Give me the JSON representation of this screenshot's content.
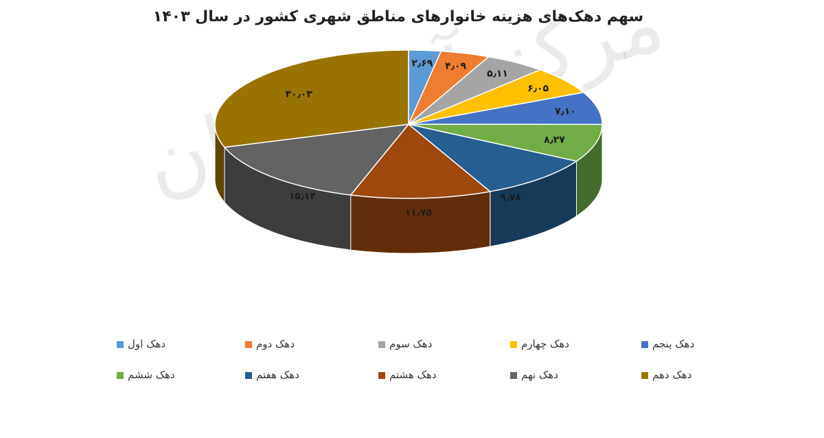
{
  "chart_data": {
    "type": "pie",
    "title": "سهم دهک‌های هزینه خانوارهای مناطق شهری کشور در سال ۱۴۰۳",
    "categories": [
      "دهک اول",
      "دهک دوم",
      "دهک سوم",
      "دهک چهارم",
      "دهک پنجم",
      "دهک ششم",
      "دهک هفتم",
      "دهک هشتم",
      "دهک نهم",
      "دهک دهم"
    ],
    "values": [
      2.69,
      4.09,
      5.11,
      6.05,
      7.1,
      8.27,
      9.78,
      11.75,
      15.14,
      30.03
    ],
    "value_labels": [
      "۲٫۶۹",
      "۴٫۰۹",
      "۵٫۱۱",
      "۶٫۰۵",
      "۷٫۱۰",
      "۸٫۲۷",
      "۹٫۷۸",
      "۱۱٫۷۵",
      "۱۵٫۱۴",
      "۳۰٫۰۳"
    ],
    "colors": [
      "#5B9BD5",
      "#ED7D31",
      "#A5A5A5",
      "#FFC000",
      "#4472C4",
      "#70AD47",
      "#255E91",
      "#9E480E",
      "#636363",
      "#997300"
    ],
    "legend_position": "bottom",
    "style": "3d"
  },
  "watermark": "مرکز آمار ایران"
}
